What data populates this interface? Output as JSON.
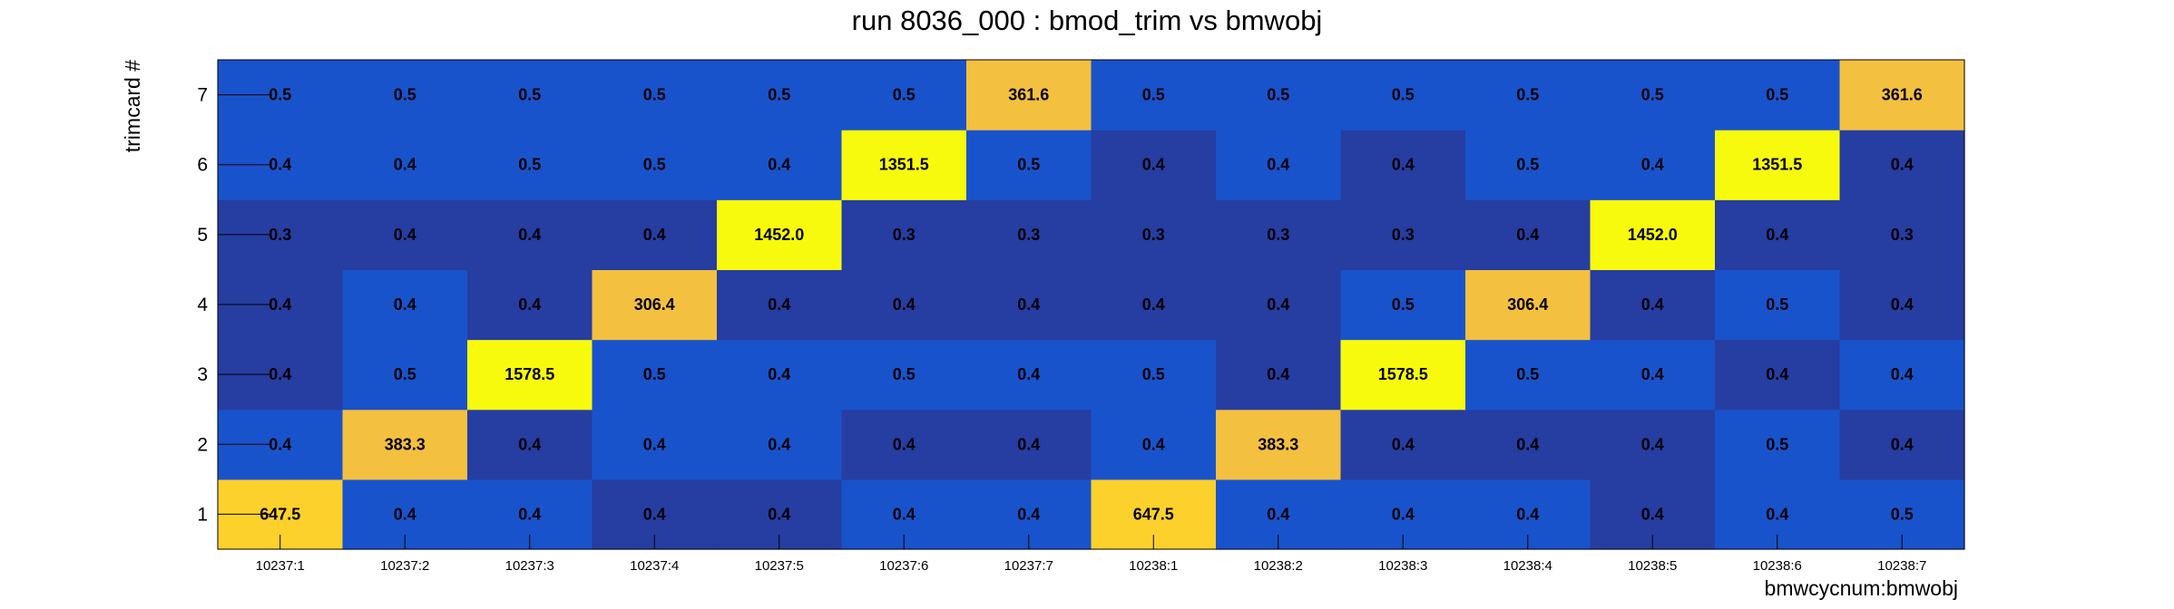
{
  "chart_data": {
    "type": "heatmap",
    "title": "run 8036_000 : bmod_trim vs bmwobj",
    "xlabel": "bmwcycnum:bmwobj",
    "ylabel": "trimcard #",
    "x_categories": [
      "10237:1",
      "10237:2",
      "10237:3",
      "10237:4",
      "10237:5",
      "10237:6",
      "10237:7",
      "10238:1",
      "10238:2",
      "10238:3",
      "10238:4",
      "10238:5",
      "10238:6",
      "10238:7"
    ],
    "y_categories": [
      "1",
      "2",
      "3",
      "4",
      "5",
      "6",
      "7"
    ],
    "values": [
      [
        "647.5",
        "0.4",
        "0.4",
        "0.4",
        "0.4",
        "0.4",
        "0.4",
        "647.5",
        "0.4",
        "0.4",
        "0.4",
        "0.4",
        "0.4",
        "0.5"
      ],
      [
        "0.4",
        "383.3",
        "0.4",
        "0.4",
        "0.4",
        "0.4",
        "0.4",
        "0.4",
        "383.3",
        "0.4",
        "0.4",
        "0.4",
        "0.5",
        "0.4"
      ],
      [
        "0.4",
        "0.5",
        "1578.5",
        "0.5",
        "0.4",
        "0.5",
        "0.4",
        "0.5",
        "0.4",
        "1578.5",
        "0.5",
        "0.4",
        "0.4",
        "0.4"
      ],
      [
        "0.4",
        "0.4",
        "0.4",
        "306.4",
        "0.4",
        "0.4",
        "0.4",
        "0.4",
        "0.4",
        "0.5",
        "306.4",
        "0.4",
        "0.5",
        "0.4"
      ],
      [
        "0.3",
        "0.4",
        "0.4",
        "0.4",
        "1452.0",
        "0.3",
        "0.3",
        "0.3",
        "0.3",
        "0.3",
        "0.4",
        "1452.0",
        "0.4",
        "0.3"
      ],
      [
        "0.4",
        "0.4",
        "0.5",
        "0.5",
        "0.4",
        "1351.5",
        "0.5",
        "0.4",
        "0.4",
        "0.4",
        "0.5",
        "0.4",
        "1351.5",
        "0.4"
      ],
      [
        "0.5",
        "0.5",
        "0.5",
        "0.5",
        "0.5",
        "0.5",
        "361.6",
        "0.5",
        "0.5",
        "0.5",
        "0.5",
        "0.5",
        "0.5",
        "361.6"
      ]
    ],
    "cell_colors": [
      [
        "#fdd12b",
        "#1953cb",
        "#1953cb",
        "#263da1",
        "#263da1",
        "#1953cb",
        "#1953cb",
        "#fdd12b",
        "#1953cb",
        "#1953cb",
        "#1953cb",
        "#263da1",
        "#1953cb",
        "#1953cb"
      ],
      [
        "#1953cb",
        "#f4c03f",
        "#263da1",
        "#1953cb",
        "#1953cb",
        "#263da1",
        "#263da1",
        "#1953cb",
        "#f4c03f",
        "#263da1",
        "#263da1",
        "#263da1",
        "#1953cb",
        "#263da1"
      ],
      [
        "#263da1",
        "#1953cb",
        "#f8fa0d",
        "#1953cb",
        "#1953cb",
        "#1953cb",
        "#1953cb",
        "#1953cb",
        "#263da1",
        "#f8fa0d",
        "#1953cb",
        "#1953cb",
        "#263da1",
        "#1953cb"
      ],
      [
        "#263da1",
        "#1953cb",
        "#263da1",
        "#f4c03f",
        "#263da1",
        "#263da1",
        "#263da1",
        "#263da1",
        "#263da1",
        "#1953cb",
        "#f4c03f",
        "#263da1",
        "#1953cb",
        "#263da1"
      ],
      [
        "#263da1",
        "#263da1",
        "#263da1",
        "#263da1",
        "#f8fa0d",
        "#263da1",
        "#263da1",
        "#263da1",
        "#263da1",
        "#263da1",
        "#263da1",
        "#f8fa0d",
        "#263da1",
        "#263da1"
      ],
      [
        "#1953cb",
        "#1953cb",
        "#1953cb",
        "#1953cb",
        "#1953cb",
        "#f8fa0d",
        "#1953cb",
        "#263da1",
        "#1953cb",
        "#263da1",
        "#1953cb",
        "#1953cb",
        "#f8fa0d",
        "#263da1"
      ],
      [
        "#1953cb",
        "#1953cb",
        "#1953cb",
        "#1953cb",
        "#1953cb",
        "#1953cb",
        "#f4c03f",
        "#1953cb",
        "#1953cb",
        "#1953cb",
        "#1953cb",
        "#1953cb",
        "#1953cb",
        "#f4c03f"
      ]
    ],
    "grid": false,
    "legend": "none"
  }
}
